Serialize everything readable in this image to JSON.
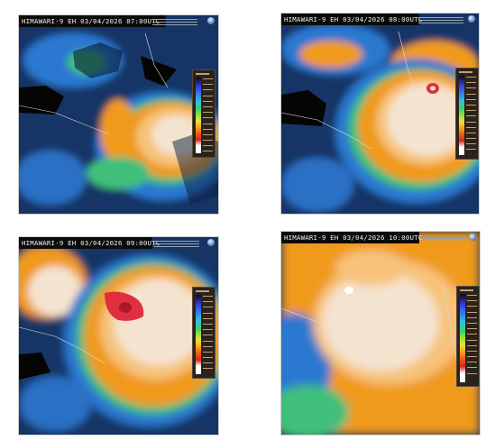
{
  "panels": [
    {
      "title": "HIMAWARI-9 EH  03/04/2026  07:00UTC"
    },
    {
      "title": "HIMAWARI-9 EH  03/04/2026  08:00UTC"
    },
    {
      "title": "HIMAWARI-9 EH  03/04/2026  09:00UTC"
    },
    {
      "title": "HIMAWARI-9 EH  03/04/2026  10:00UTC"
    }
  ],
  "colors": {
    "ocean": "#12305e",
    "cloud_low": "#2c78d0",
    "cloud_mid": "#3fbf7a",
    "cloud_high": "#f09a1e",
    "cloud_top": "#f4e3cf",
    "overshoot": "#e03040",
    "land": "#050505"
  }
}
